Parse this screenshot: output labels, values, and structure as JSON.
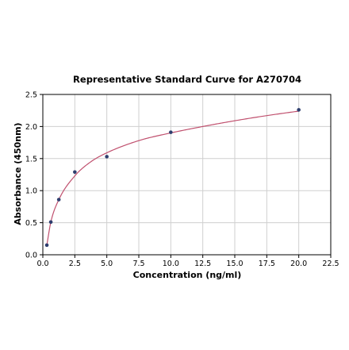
{
  "chart_data": {
    "type": "scatter",
    "title": "Representative Standard Curve for A270704",
    "xlabel": "Concentration (ng/ml)",
    "ylabel": "Absorbance (450nm)",
    "xlim": [
      0.0,
      22.5
    ],
    "ylim": [
      0.0,
      2.5
    ],
    "xticks": [
      "0.0",
      "2.5",
      "5.0",
      "7.5",
      "10.0",
      "12.5",
      "15.0",
      "17.5",
      "20.0",
      "22.5"
    ],
    "yticks": [
      "0.0",
      "0.5",
      "1.0",
      "1.5",
      "2.0",
      "2.5"
    ],
    "grid": true,
    "legend": "none",
    "series": [
      {
        "x": [
          0.313,
          0.625,
          1.25,
          2.5,
          5.0,
          10.0,
          20.0
        ],
        "y": [
          0.15,
          0.51,
          0.86,
          1.29,
          1.53,
          1.91,
          2.26
        ]
      }
    ],
    "fit_curve": {
      "x": [
        0.313,
        0.625,
        1.25,
        2.5,
        3.75,
        5.0,
        7.5,
        10.0,
        12.5,
        15.0,
        17.5,
        20.0
      ],
      "y": [
        0.15,
        0.51,
        0.86,
        1.23,
        1.45,
        1.59,
        1.78,
        1.9,
        2.0,
        2.09,
        2.17,
        2.24
      ]
    },
    "colors": {
      "points": "#2e3e6e",
      "curve": "#c0506e",
      "grid": "#cfcfcf"
    }
  }
}
